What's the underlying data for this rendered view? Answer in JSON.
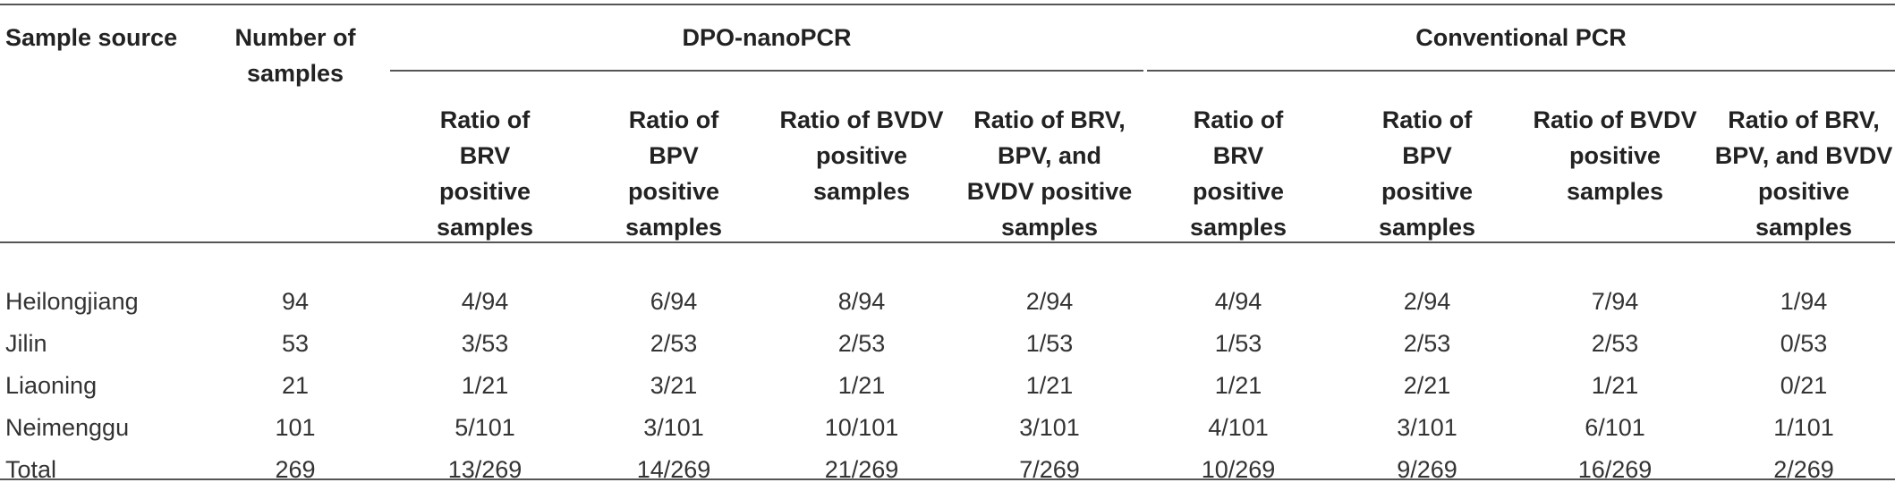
{
  "table": {
    "headers": {
      "sample_source": "Sample source",
      "number_of_samples": "Number of samples",
      "group_dpo": "DPO-nanoPCR",
      "group_conventional": "Conventional PCR",
      "dpo_sub": [
        "Ratio of BRV positive samples",
        "Ratio of BPV positive samples",
        "Ratio of BVDV positive samples",
        "Ratio of BRV, BPV, and BVDV positive samples"
      ],
      "conv_sub": [
        "Ratio of BRV positive samples",
        "Ratio of BPV positive samples",
        "Ratio of BVDV positive samples",
        "Ratio of BRV, BPV, and BVDV positive samples"
      ]
    },
    "rows": [
      {
        "source": "Heilongjiang",
        "n": "94",
        "dpo": [
          "4/94",
          "6/94",
          "8/94",
          "2/94"
        ],
        "conv": [
          "4/94",
          "2/94",
          "7/94",
          "1/94"
        ]
      },
      {
        "source": "Jilin",
        "n": "53",
        "dpo": [
          "3/53",
          "2/53",
          "2/53",
          "1/53"
        ],
        "conv": [
          "1/53",
          "2/53",
          "2/53",
          "0/53"
        ]
      },
      {
        "source": "Liaoning",
        "n": "21",
        "dpo": [
          "1/21",
          "3/21",
          "1/21",
          "1/21"
        ],
        "conv": [
          "1/21",
          "2/21",
          "1/21",
          "0/21"
        ]
      },
      {
        "source": "Neimenggu",
        "n": "101",
        "dpo": [
          "5/101",
          "3/101",
          "10/101",
          "3/101"
        ],
        "conv": [
          "4/101",
          "3/101",
          "6/101",
          "1/101"
        ]
      },
      {
        "source": "Total",
        "n": "269",
        "dpo": [
          "13/269",
          "14/269",
          "21/269",
          "7/269"
        ],
        "conv": [
          "10/269",
          "9/269",
          "16/269",
          "2/269"
        ]
      }
    ]
  }
}
